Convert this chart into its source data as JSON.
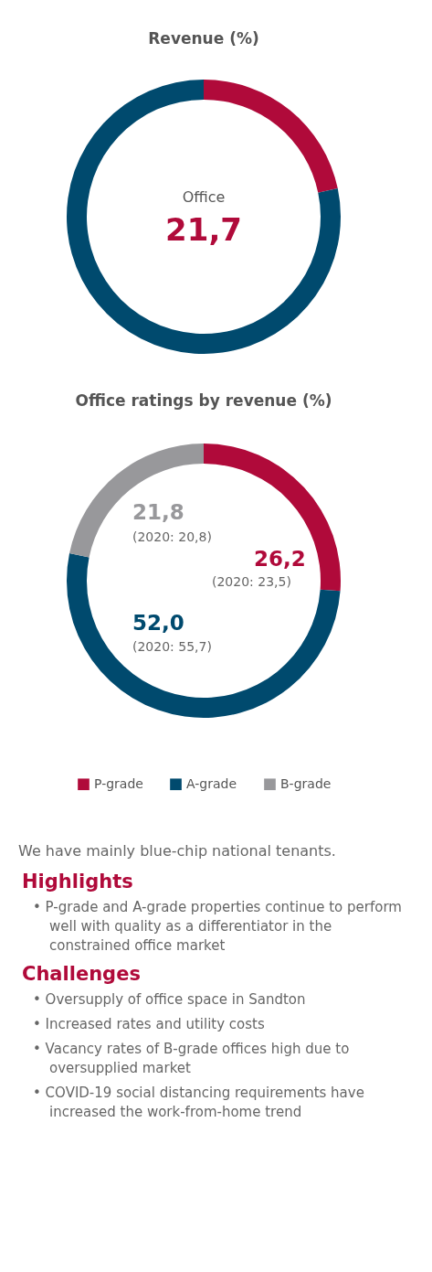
{
  "chart_data": [
    {
      "type": "donut",
      "title": "Revenue (%)",
      "categories": [
        "Office",
        null
      ],
      "values": [
        21.7,
        78.3
      ],
      "colors": [
        "#b00a3a",
        "#004a6e"
      ],
      "value_labels": [
        "21,7",
        null
      ],
      "legend": false
    },
    {
      "type": "donut",
      "title": "Office ratings by revenue (%)",
      "categories": [
        "P-grade",
        "A-grade",
        "B-grade"
      ],
      "values": [
        26.2,
        52.0,
        21.8
      ],
      "colors": [
        "#b00a3a",
        "#004a6e",
        "#98989b"
      ],
      "value_labels": [
        "26,2",
        "52,0",
        "21,8"
      ],
      "annotations": [
        "(2020: 23,5)",
        "(2020: 55,7)",
        "(2020: 20,8)"
      ],
      "legend": "bottom"
    },
    {
      "type": "other",
      "annotations": [
        "We have mainly blue-chip national tenants."
      ]
    },
    {
      "type": "other",
      "title": "Highlights",
      "annotations": [
        "•  P-grade and A-grade properties continue to perform well with quality as a differentiator in the constrained office market"
      ]
    },
    {
      "type": "other",
      "title": "Challenges",
      "annotations": [
        "•  Oversupply of office space in Sandton",
        "•  Increased rates and utility costs",
        "•  Vacancy rates of B-grade offices high due to oversupplied market",
        "•  COVID-19 social distancing requirements have increased the work-from-home trend"
      ]
    }
  ]
}
